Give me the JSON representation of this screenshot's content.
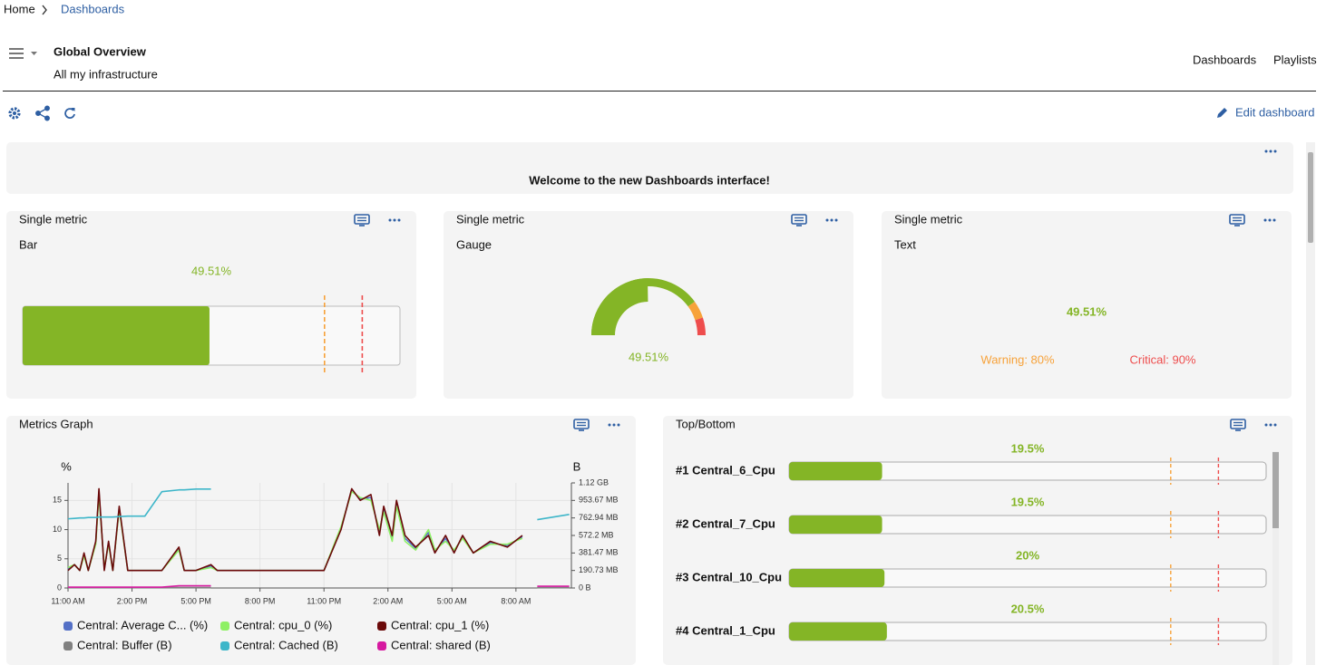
{
  "breadcrumb": {
    "home": "Home",
    "current": "Dashboards"
  },
  "header": {
    "title": "Global Overview",
    "subtitle": "All my infrastructure",
    "links": [
      "Dashboards",
      "Playlists"
    ]
  },
  "toolbar": {
    "edit": "Edit dashboard"
  },
  "welcome": {
    "text": "Welcome to the new Dashboards interface!"
  },
  "single_metrics": [
    {
      "title": "Single metric",
      "display": "Bar",
      "value": 49.51,
      "value_label": "49.51%",
      "scale": [
        0,
        100
      ],
      "warning": 80,
      "critical": 90
    },
    {
      "title": "Single metric",
      "display": "Gauge",
      "value": 49.51,
      "value_label": "49.51%",
      "scale": [
        0,
        100
      ],
      "warning": 80,
      "critical": 90
    },
    {
      "title": "Single metric",
      "display": "Text",
      "value_label": "49.51%",
      "warning_label": "Warning: 80%",
      "critical_label": "Critical: 90%"
    }
  ],
  "metrics_graph": {
    "type": "line",
    "title": "Metrics Graph",
    "y_label": "%",
    "y2_label": "B",
    "x": [
      0,
      0.3,
      0.55,
      0.75,
      0.95,
      1.3,
      1.45,
      1.7,
      1.9,
      2.1,
      2.4,
      2.8,
      3.6,
      4.4,
      5.2,
      5.45,
      6.0,
      6.7,
      7.0,
      8.0,
      9.0,
      10.0,
      11.0,
      12.0,
      12.8,
      13.3,
      13.7,
      14.2,
      14.6,
      14.8,
      15.2,
      15.4,
      15.8,
      16.3,
      16.9,
      17.2,
      17.7,
      18.1,
      18.5,
      19.0,
      19.8,
      20.6,
      21.3,
      22.0,
      23.5
    ],
    "xlim": [
      0,
      23.6
    ],
    "xticks": [
      {
        "value": 0,
        "label": "11:00 AM"
      },
      {
        "value": 3,
        "label": "2:00 PM"
      },
      {
        "value": 6,
        "label": "5:00 PM"
      },
      {
        "value": 9,
        "label": "8:00 PM"
      },
      {
        "value": 12,
        "label": "11:00 PM"
      },
      {
        "value": 15,
        "label": "2:00 AM"
      },
      {
        "value": 18,
        "label": "5:00 AM"
      },
      {
        "value": 21,
        "label": "8:00 AM"
      }
    ],
    "ylim": [
      0,
      18
    ],
    "yticks": [
      0,
      5,
      10,
      15
    ],
    "y2lim": [
      0,
      1200000000
    ],
    "y2ticks": [
      {
        "value": 0,
        "label": "0 B"
      },
      {
        "value": 200000000,
        "label": "190.73 MB"
      },
      {
        "value": 400000000,
        "label": "381.47 MB"
      },
      {
        "value": 600000000,
        "label": "572.2 MB"
      },
      {
        "value": 800000000,
        "label": "762.94 MB"
      },
      {
        "value": 1000000000,
        "label": "953.67 MB"
      },
      {
        "value": 1200000000,
        "label": "1.12 GB"
      }
    ],
    "grid": true,
    "series": [
      {
        "name": "Central: Average C... (%)",
        "color": "#5470c6",
        "values": [
          3.2,
          4,
          3,
          5.8,
          3,
          7.8,
          16.5,
          3.2,
          7.8,
          3,
          13.8,
          3,
          3,
          3,
          6.8,
          3,
          3,
          3.8,
          3,
          3,
          3,
          3,
          3,
          3,
          10.2,
          16.8,
          15.2,
          15.5,
          9.5,
          13.5,
          8.5,
          14.5,
          8.5,
          6.8,
          9.5,
          6.2,
          8.5,
          6.2,
          8.8,
          6,
          7.8,
          7.2,
          8.8,
          null,
          null
        ]
      },
      {
        "name": "Central: cpu_0 (%)",
        "color": "#8ef064",
        "values": [
          3.5,
          4,
          3,
          5.5,
          3,
          7.5,
          16,
          3.5,
          7.5,
          3,
          13.5,
          3,
          3,
          3,
          6.5,
          3,
          3,
          3.5,
          3,
          3,
          3,
          3,
          3,
          3,
          10.5,
          16.5,
          15.5,
          15,
          10,
          13,
          8,
          14,
          8,
          6.5,
          10,
          6.5,
          8,
          6.5,
          8.5,
          6,
          7.5,
          7.5,
          8.5,
          null,
          null
        ]
      },
      {
        "name": "Central: cpu_1 (%)",
        "color": "#6b0a0a",
        "values": [
          3,
          4,
          3,
          6,
          3,
          8,
          17,
          3,
          8,
          3,
          14,
          3,
          3,
          3,
          7,
          3,
          3,
          4,
          3,
          3,
          3,
          3,
          3,
          3,
          10,
          17,
          15,
          16,
          9,
          14,
          9,
          15,
          9,
          7,
          9,
          6,
          9,
          6,
          9,
          6,
          8,
          7,
          9,
          null,
          null
        ]
      },
      {
        "name": "Central: Buffer (B)",
        "color": "#808080",
        "axis": "y2",
        "values": [
          5000000,
          5000000,
          5000000,
          5000000,
          5000000,
          5000000,
          5000000,
          5000000,
          5000000,
          5000000,
          5000000,
          5000000,
          5000000,
          5000000,
          5000000,
          5000000,
          5000000,
          5000000,
          null,
          null,
          null,
          null,
          null,
          null,
          null,
          null,
          null,
          null,
          null,
          null,
          null,
          null,
          null,
          null,
          null,
          null,
          null,
          null,
          null,
          null,
          null,
          null,
          null,
          5000000,
          5000000
        ]
      },
      {
        "name": "Central: Cached (B)",
        "color": "#3eb6c9",
        "axis": "y2",
        "values": [
          790000000,
          795000000,
          800000000,
          800000000,
          805000000,
          805000000,
          810000000,
          810000000,
          810000000,
          810000000,
          815000000,
          820000000,
          820000000,
          1100000000,
          1120000000,
          1120000000,
          1130000000,
          1130000000,
          null,
          null,
          null,
          null,
          null,
          null,
          null,
          null,
          null,
          null,
          null,
          null,
          null,
          null,
          null,
          null,
          null,
          null,
          null,
          null,
          null,
          null,
          null,
          null,
          null,
          780000000,
          840000000
        ]
      },
      {
        "name": "Central: shared (B)",
        "color": "#d61aa0",
        "axis": "y2",
        "values": [
          10000000,
          10000000,
          10000000,
          10000000,
          10000000,
          10000000,
          10000000,
          10000000,
          10000000,
          10000000,
          10000000,
          10000000,
          10000000,
          10000000,
          25000000,
          25000000,
          25000000,
          25000000,
          null,
          null,
          null,
          null,
          null,
          null,
          null,
          null,
          null,
          null,
          null,
          null,
          null,
          null,
          null,
          null,
          null,
          null,
          null,
          null,
          null,
          null,
          null,
          null,
          null,
          20000000,
          20000000
        ]
      }
    ]
  },
  "top_bottom": {
    "title": "Top/Bottom",
    "scale": [
      0,
      100
    ],
    "warning": 80,
    "critical": 90,
    "items": [
      {
        "name": "#1 Central_6_Cpu",
        "value": 19.5,
        "value_label": "19.5%"
      },
      {
        "name": "#2 Central_7_Cpu",
        "value": 19.5,
        "value_label": "19.5%"
      },
      {
        "name": "#3 Central_10_Cpu",
        "value": 20,
        "value_label": "20%"
      },
      {
        "name": "#4 Central_1_Cpu",
        "value": 20.5,
        "value_label": "20.5%"
      }
    ]
  }
}
